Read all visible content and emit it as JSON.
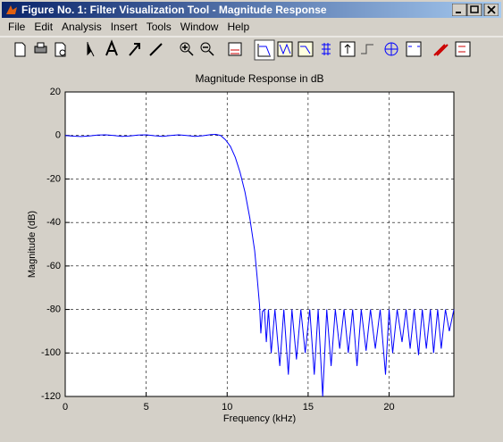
{
  "window": {
    "title": "Figure No. 1: Filter Visualization Tool - Magnitude Response"
  },
  "menu": [
    "File",
    "Edit",
    "Analysis",
    "Insert",
    "Tools",
    "Window",
    "Help"
  ],
  "chart_data": {
    "type": "line",
    "title": "Magnitude Response in dB",
    "x_label": "Frequency (kHz)",
    "y_label": "Magnitude (dB)",
    "x": [
      0,
      0.5,
      1,
      1.5,
      2,
      2.5,
      3,
      3.5,
      4,
      4.5,
      5,
      5.5,
      6,
      6.5,
      7,
      7.5,
      8,
      8.5,
      9,
      9.3,
      9.6,
      9.9,
      10.2,
      10.5,
      10.8,
      11.1,
      11.4,
      11.7,
      11.85,
      12.0,
      12.08,
      12.18,
      12.3,
      12.42,
      12.55,
      12.72,
      12.95,
      13.25,
      13.5,
      13.78,
      14.0,
      14.28,
      14.55,
      14.82,
      15.1,
      15.38,
      15.62,
      15.9,
      16.15,
      16.42,
      16.68,
      16.95,
      17.22,
      17.48,
      17.75,
      18.02,
      18.28,
      18.58,
      18.85,
      19.15,
      19.45,
      19.78,
      20.0,
      20.22,
      20.5,
      20.8,
      21.05,
      21.3,
      21.55,
      21.82,
      22.05,
      22.3,
      22.55,
      22.75,
      23.0,
      23.22,
      23.48,
      23.72,
      24
    ],
    "values": [
      0,
      -0.3,
      -0.5,
      -0.2,
      0.2,
      0.3,
      0,
      -0.4,
      -0.2,
      0.2,
      0.3,
      -0.1,
      -0.4,
      0,
      0.3,
      0,
      -0.4,
      -0.1,
      0.4,
      0.5,
      0,
      -2,
      -5,
      -10,
      -17,
      -26,
      -38,
      -53,
      -65,
      -78,
      -91,
      -81,
      -80,
      -95,
      -80,
      -100,
      -80,
      -106,
      -80,
      -110,
      -80,
      -103,
      -80,
      -100,
      -80,
      -110,
      -80,
      -120,
      -80,
      -106,
      -80,
      -98,
      -80,
      -100,
      -80,
      -106,
      -80,
      -99,
      -80,
      -98,
      -80,
      -110,
      -80,
      -100,
      -80,
      -95,
      -80,
      -98,
      -80,
      -101,
      -80,
      -98,
      -80,
      -100,
      -80,
      -98,
      -80,
      -90,
      -80
    ],
    "color": "#0000ff",
    "xlim": [
      0,
      24
    ],
    "xticks": [
      0,
      5,
      10,
      15,
      20
    ],
    "ylim": [
      -120,
      20
    ],
    "yticks": [
      20,
      0,
      -20,
      -40,
      -60,
      -80,
      -100,
      -120
    ],
    "grid": true
  }
}
